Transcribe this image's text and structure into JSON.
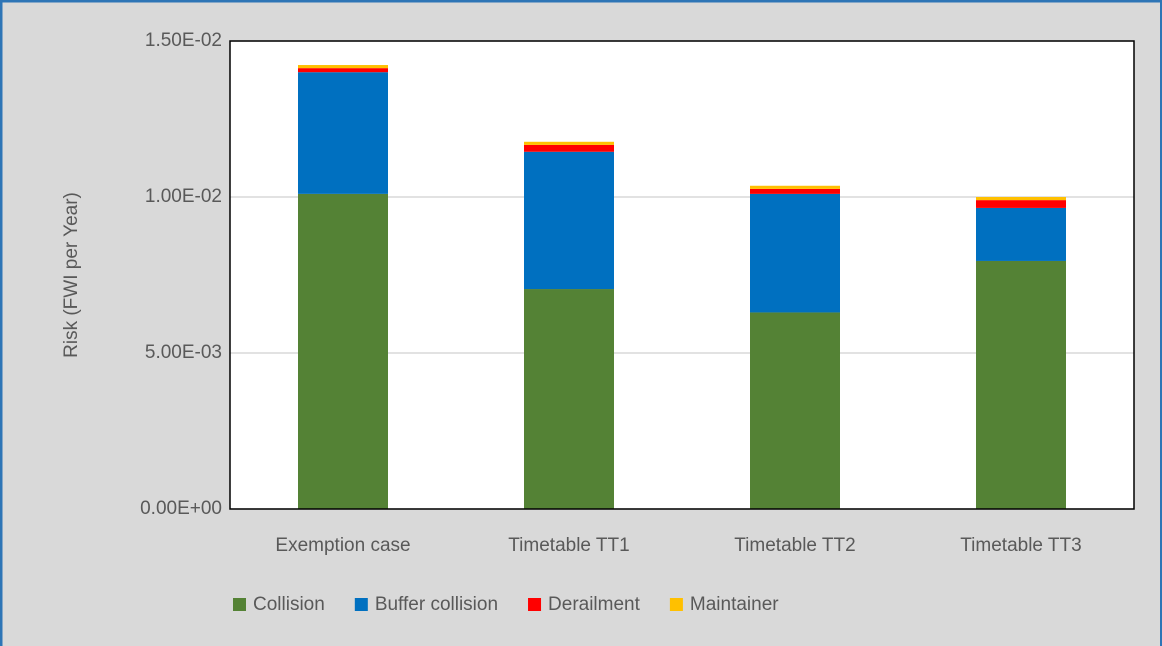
{
  "chart_data": {
    "type": "stacked_bar",
    "y_label": "Risk (FWI per Year)",
    "categories": [
      "Exemption case",
      "Timetable TT1",
      "Timetable TT2",
      "Timetable TT3"
    ],
    "series": [
      {
        "name": "Collision",
        "color": "#548235",
        "values": [
          0.0101,
          0.00705,
          0.0063,
          0.00795
        ]
      },
      {
        "name": "Buffer collision",
        "color": "#0070c0",
        "values": [
          0.0039,
          0.0044,
          0.0038,
          0.0017
        ]
      },
      {
        "name": "Derailment",
        "color": "#ff0000",
        "values": [
          0.00013,
          0.00022,
          0.00016,
          0.00025
        ]
      },
      {
        "name": "Maintainer",
        "color": "#ffc000",
        "values": [
          0.0001,
          0.0001,
          0.0001,
          0.0001
        ]
      }
    ],
    "ylim": [
      0,
      0.015
    ],
    "yticks": [
      {
        "value": 0,
        "label": "0.00E+00"
      },
      {
        "value": 0.005,
        "label": "5.00E-03"
      },
      {
        "value": 0.01,
        "label": "1.00E-02"
      },
      {
        "value": 0.015,
        "label": "1.50E-02"
      }
    ],
    "grid": true,
    "legend": "bottom"
  }
}
